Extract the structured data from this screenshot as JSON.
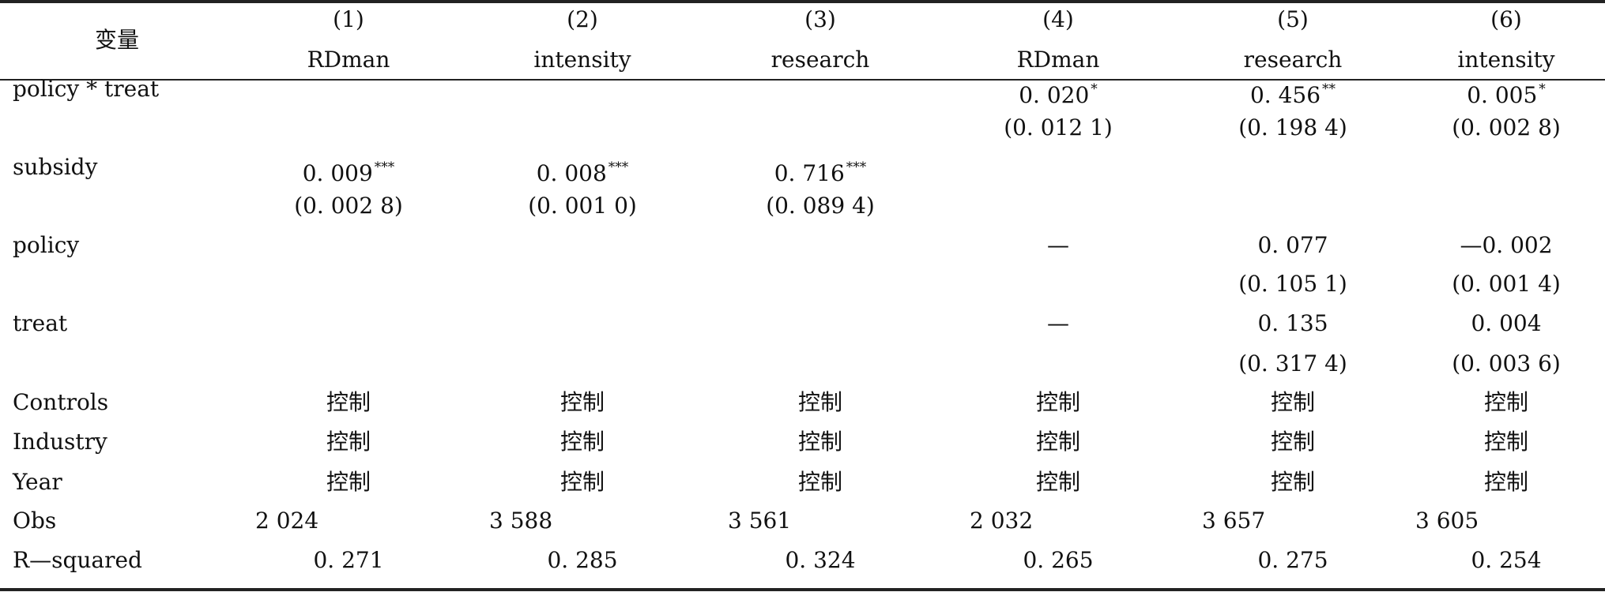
{
  "header": {
    "variable": "变量",
    "col_numbers": [
      "(1)",
      "(2)",
      "(3)",
      "(4)",
      "(5)",
      "(6)"
    ],
    "col_names": [
      "RDman",
      "intensity",
      "research",
      "RDman",
      "research",
      "intensity"
    ]
  },
  "rows": [
    {
      "label": "policy * treat",
      "coef": [
        "",
        "",
        "",
        "0. 020",
        "0. 456",
        "0. 005"
      ],
      "stars": [
        "",
        "",
        "",
        "*",
        "**",
        "*"
      ],
      "se": [
        "",
        "",
        "",
        "(0. 012 1)",
        "(0. 198 4)",
        "(0. 002 8)"
      ]
    },
    {
      "label": "subsidy",
      "coef": [
        "0. 009",
        "0. 008",
        "0. 716",
        "",
        "",
        ""
      ],
      "stars": [
        "***",
        "***",
        "***",
        "",
        "",
        ""
      ],
      "se": [
        "(0. 002 8)",
        "(0. 001 0)",
        "(0. 089 4)",
        "",
        "",
        ""
      ]
    },
    {
      "label": "policy",
      "coef": [
        "",
        "",
        "",
        "—",
        "0. 077",
        "—0. 002"
      ],
      "stars": [
        "",
        "",
        "",
        "",
        "",
        ""
      ],
      "se": [
        "",
        "",
        "",
        "",
        "(0. 105 1)",
        "(0. 001 4)"
      ]
    },
    {
      "label": "treat",
      "coef": [
        "",
        "",
        "",
        "—",
        "0. 135",
        "0. 004"
      ],
      "stars": [
        "",
        "",
        "",
        "",
        "",
        ""
      ],
      "se": [
        "",
        "",
        "",
        "",
        "(0. 317 4)",
        "(0. 003 6)"
      ]
    }
  ],
  "fixed_rows": [
    {
      "label": "Controls",
      "values": [
        "控制",
        "控制",
        "控制",
        "控制",
        "控制",
        "控制"
      ]
    },
    {
      "label": "Industry",
      "values": [
        "控制",
        "控制",
        "控制",
        "控制",
        "控制",
        "控制"
      ]
    },
    {
      "label": "Year",
      "values": [
        "控制",
        "控制",
        "控制",
        "控制",
        "控制",
        "控制"
      ]
    }
  ],
  "obs": {
    "label": "Obs",
    "values": [
      "2 024",
      "3 588",
      "3 561",
      "2 032",
      "3 657",
      "3 605"
    ]
  },
  "rsq": {
    "label": "R—squared",
    "values": [
      "0. 271",
      "0. 285",
      "0. 324",
      "0. 265",
      "0. 275",
      "0. 254"
    ]
  }
}
